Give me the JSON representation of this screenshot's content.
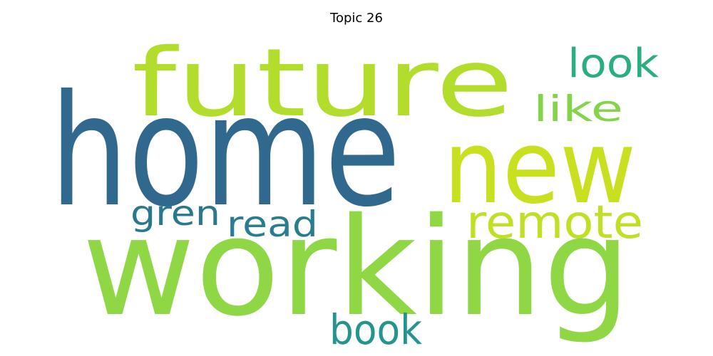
{
  "title": "Topic 26",
  "words": [
    {
      "text": "home",
      "color": "#31688e"
    },
    {
      "text": "working",
      "color": "#8fd744"
    },
    {
      "text": "future",
      "color": "#b2dd2d"
    },
    {
      "text": "new",
      "color": "#c8e020"
    },
    {
      "text": "remote",
      "color": "#c0df25"
    },
    {
      "text": "look",
      "color": "#29af7f"
    },
    {
      "text": "like",
      "color": "#84d44b"
    },
    {
      "text": "gren",
      "color": "#2a788e"
    },
    {
      "text": "read",
      "color": "#287d8e"
    },
    {
      "text": "book",
      "color": "#25948e"
    }
  ]
}
